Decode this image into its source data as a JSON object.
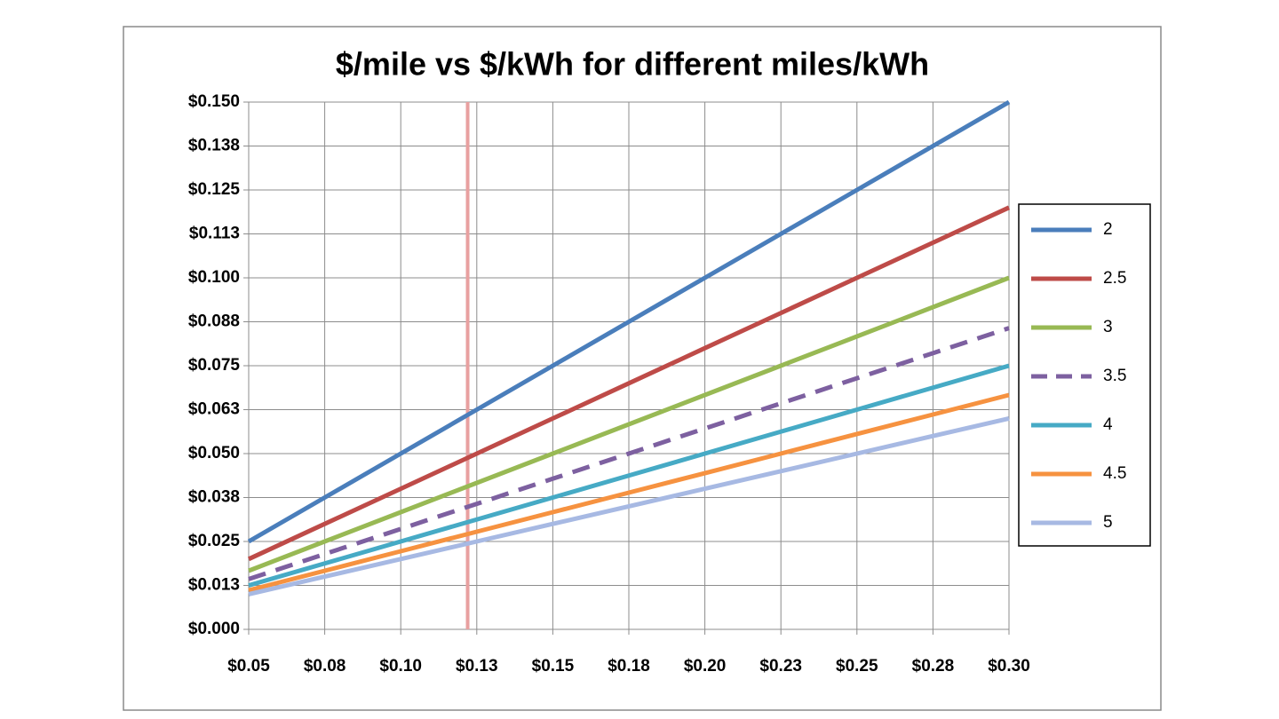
{
  "chart_data": {
    "type": "line",
    "title": "$/mile vs $/kWh for different miles/kWh",
    "x": [
      0.05,
      0.075,
      0.1,
      0.125,
      0.15,
      0.175,
      0.2,
      0.225,
      0.25,
      0.275,
      0.3
    ],
    "series": [
      {
        "name": "2",
        "color": "#4a7ebb",
        "values": [
          0.025,
          0.0375,
          0.05,
          0.0625,
          0.075,
          0.0875,
          0.1,
          0.1125,
          0.125,
          0.1375,
          0.15
        ]
      },
      {
        "name": "2.5",
        "color": "#be4b48",
        "values": [
          0.02,
          0.03,
          0.04,
          0.05,
          0.06,
          0.07,
          0.08,
          0.09,
          0.1,
          0.11,
          0.12
        ]
      },
      {
        "name": "3",
        "color": "#98b954",
        "values": [
          0.01667,
          0.025,
          0.03333,
          0.04167,
          0.05,
          0.05833,
          0.06667,
          0.075,
          0.08333,
          0.09167,
          0.1
        ]
      },
      {
        "name": "3.5",
        "color": "#7d60a0",
        "dashed": true,
        "values": [
          0.01429,
          0.02143,
          0.02857,
          0.03571,
          0.04286,
          0.05,
          0.05714,
          0.06429,
          0.07143,
          0.07857,
          0.08571
        ]
      },
      {
        "name": "4",
        "color": "#46aac5",
        "values": [
          0.0125,
          0.01875,
          0.025,
          0.03125,
          0.0375,
          0.04375,
          0.05,
          0.05625,
          0.0625,
          0.06875,
          0.075
        ]
      },
      {
        "name": "4.5",
        "color": "#f69240",
        "values": [
          0.01111,
          0.01667,
          0.02222,
          0.02778,
          0.03333,
          0.03889,
          0.04444,
          0.05,
          0.05556,
          0.06111,
          0.06667
        ]
      },
      {
        "name": "5",
        "color": "#a7b9e3",
        "values": [
          0.01,
          0.015,
          0.02,
          0.025,
          0.03,
          0.035,
          0.04,
          0.045,
          0.05,
          0.055,
          0.06
        ]
      }
    ],
    "reference_line_x": 0.122,
    "reference_line_color": "#e8a0a0",
    "xlim": [
      0.05,
      0.3
    ],
    "xticks": [
      {
        "value": 0.05,
        "label": "$0.05"
      },
      {
        "value": 0.075,
        "label": "$0.08"
      },
      {
        "value": 0.1,
        "label": "$0.10"
      },
      {
        "value": 0.125,
        "label": "$0.13"
      },
      {
        "value": 0.15,
        "label": "$0.15"
      },
      {
        "value": 0.175,
        "label": "$0.18"
      },
      {
        "value": 0.2,
        "label": "$0.20"
      },
      {
        "value": 0.225,
        "label": "$0.23"
      },
      {
        "value": 0.25,
        "label": "$0.25"
      },
      {
        "value": 0.275,
        "label": "$0.28"
      },
      {
        "value": 0.3,
        "label": "$0.30"
      }
    ],
    "ylim": [
      0,
      0.15
    ],
    "yticks": [
      {
        "value": 0,
        "label": "$0.000"
      },
      {
        "value": 0.0125,
        "label": "$0.013"
      },
      {
        "value": 0.025,
        "label": "$0.025"
      },
      {
        "value": 0.0375,
        "label": "$0.038"
      },
      {
        "value": 0.05,
        "label": "$0.050"
      },
      {
        "value": 0.0625,
        "label": "$0.063"
      },
      {
        "value": 0.075,
        "label": "$0.075"
      },
      {
        "value": 0.0875,
        "label": "$0.088"
      },
      {
        "value": 0.1,
        "label": "$0.100"
      },
      {
        "value": 0.1125,
        "label": "$0.113"
      },
      {
        "value": 0.125,
        "label": "$0.125"
      },
      {
        "value": 0.1375,
        "label": "$0.138"
      },
      {
        "value": 0.15,
        "label": "$0.150"
      }
    ],
    "grid": true,
    "legend": "right"
  }
}
